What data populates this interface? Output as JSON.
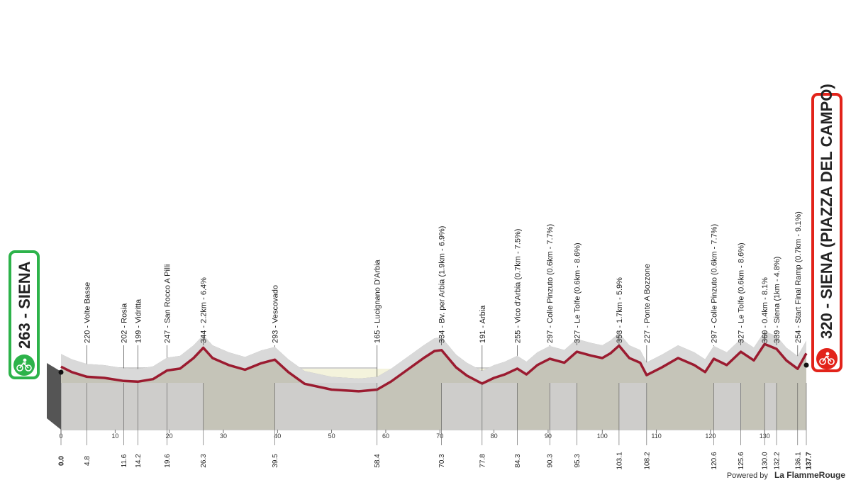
{
  "start": {
    "label": "263 - SIENA",
    "color": "#2db34a"
  },
  "finish": {
    "label": "320 - SIENA (PIAZZA DEL CAMPO)",
    "color": "#e2231a"
  },
  "credit": {
    "prefix": "Powered by",
    "brand": "La FlammeRouge"
  },
  "chart_data": {
    "type": "area",
    "title": "",
    "xlabel": "",
    "ylabel": "",
    "xlim": [
      0,
      137.7
    ],
    "ylim": [
      0,
      360
    ],
    "reference_line": {
      "value": 200,
      "label": "200"
    },
    "x_ticks": [
      0,
      10,
      20,
      30,
      40,
      50,
      60,
      70,
      80,
      90,
      100,
      110,
      120,
      130
    ],
    "km_markers": [
      "0.0",
      "4.8",
      "11.6",
      "14.2",
      "19.6",
      "26.3",
      "39.5",
      "58.4",
      "70.3",
      "77.8",
      "84.3",
      "90.3",
      "95.3",
      "103.1",
      "108.2",
      "120.6",
      "125.6",
      "130.0",
      "132.2",
      "136.1",
      "137.7"
    ],
    "sector_bands": [
      [
        0,
        14.2
      ],
      [
        14.2,
        19.6
      ],
      [
        19.6,
        26.3
      ],
      [
        39.5,
        58.4
      ],
      [
        70.3,
        84.3
      ],
      [
        90.3,
        95.3
      ],
      [
        103.1,
        108.2
      ],
      [
        120.6,
        125.6
      ],
      [
        130.0,
        132.2
      ]
    ],
    "profile": {
      "x": [
        0,
        2,
        4.8,
        8,
        11.6,
        14.2,
        17,
        19.6,
        22,
        24.5,
        26.3,
        28,
        31,
        34,
        37,
        39.5,
        42,
        45,
        50,
        55,
        58.4,
        61,
        64,
        67,
        69,
        70.3,
        73,
        75,
        77.8,
        80,
        82,
        84.3,
        86,
        88,
        90.3,
        93,
        95.3,
        98,
        100,
        101.5,
        103.1,
        105,
        107,
        108.2,
        111,
        114,
        117,
        119,
        120.6,
        123,
        125.6,
        128,
        130,
        132.2,
        134,
        136.1,
        137.7
      ],
      "y": [
        263,
        240,
        220,
        215,
        202,
        199,
        210,
        247,
        255,
        300,
        344,
        300,
        270,
        250,
        278,
        293,
        240,
        190,
        165,
        158,
        165,
        200,
        250,
        300,
        330,
        334,
        260,
        225,
        191,
        215,
        230,
        255,
        230,
        270,
        297,
        280,
        327,
        310,
        300,
        320,
        353,
        300,
        280,
        227,
        260,
        300,
        270,
        240,
        297,
        270,
        327,
        290,
        360,
        339,
        290,
        254,
        320
      ]
    },
    "annotations": [
      {
        "km": 4.8,
        "label": "220 - Volte Basse"
      },
      {
        "km": 11.6,
        "label": "202 - Rosia"
      },
      {
        "km": 14.2,
        "label": "199 - Vidritta"
      },
      {
        "km": 19.6,
        "label": "247 - San Rocco A Pilli"
      },
      {
        "km": 26.3,
        "label": "344 - 2.2km - 6.4%"
      },
      {
        "km": 39.5,
        "label": "293 - Vescovado"
      },
      {
        "km": 58.4,
        "label": "165 - Lucignano D'Arbia"
      },
      {
        "km": 70.3,
        "label": "334 - Bv. per Arbia (1.9km - 6.9%)"
      },
      {
        "km": 77.8,
        "label": "191 - Arbia"
      },
      {
        "km": 84.3,
        "label": "255 - Vico d'Arbia (0.7km - 7.5%)"
      },
      {
        "km": 90.3,
        "label": "297 - Colle Pinzuto (0.6km - 7.7%)"
      },
      {
        "km": 95.3,
        "label": "327 - Le Tolfe (0.6km - 8.6%)"
      },
      {
        "km": 103.1,
        "label": "353 - 1.7km - 5.9%"
      },
      {
        "km": 108.2,
        "label": "227 - Ponte A Bozzone"
      },
      {
        "km": 120.6,
        "label": "297 - Colle Pinzuto (0.6km - 7.7%)"
      },
      {
        "km": 125.6,
        "label": "327 - Le Tolfe (0.6km - 8.6%)"
      },
      {
        "km": 130.0,
        "label": "360 - 0.4km - 8.1%"
      },
      {
        "km": 132.2,
        "label": "339 - Siena (1km - 4.8%)"
      },
      {
        "km": 136.1,
        "label": "254 - Start Final Ramp (0.7km - 9.1%)"
      }
    ]
  }
}
